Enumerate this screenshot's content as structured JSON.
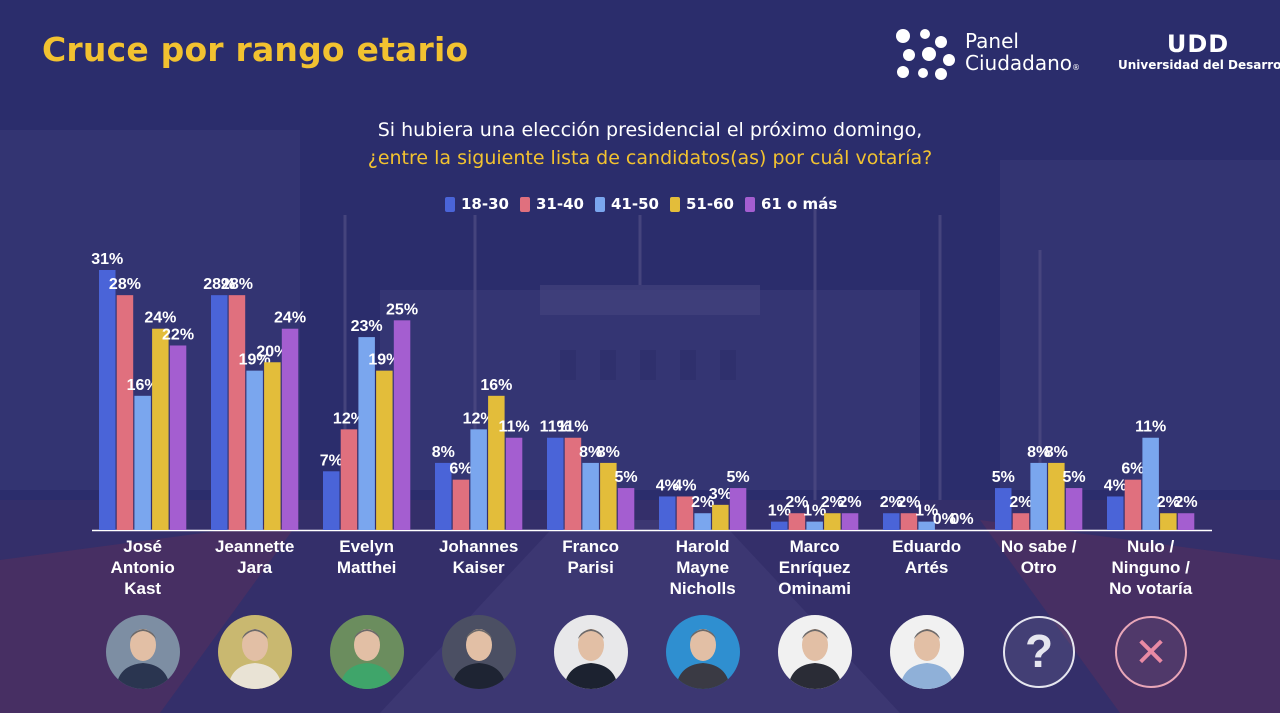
{
  "title": "Cruce por rango etario",
  "logo_panel": {
    "line1": "Panel",
    "line2": "Ciudadano",
    "reg": "®"
  },
  "logo_udd": {
    "mark": "UDD",
    "subtitle": "Universidad del Desarrollo"
  },
  "question": {
    "line1": "Si hubiera una elección presidencial el próximo domingo,",
    "line2": "¿entre la siguiente lista de candidatos(as) por cuál votaría?"
  },
  "colors": {
    "title": "#f2c230",
    "accent": "#f2c230"
  },
  "chart_data": {
    "type": "bar",
    "title": "Si hubiera una elección presidencial el próximo domingo, ¿entre la siguiente lista de candidatos(as) por cuál votaría?",
    "categories": [
      "José Antonio Kast",
      "Jeannette Jara",
      "Evelyn Matthei",
      "Johannes Kaiser",
      "Franco Parisi",
      "Harold Mayne Nicholls",
      "Marco Enríquez Ominami",
      "Eduardo Artés",
      "No sabe / Otro",
      "Nulo / Ninguno / No votaría"
    ],
    "category_lines": [
      [
        "José",
        "Antonio",
        "Kast"
      ],
      [
        "Jeannette",
        "Jara"
      ],
      [
        "Evelyn",
        "Matthei"
      ],
      [
        "Johannes",
        "Kaiser"
      ],
      [
        "Franco",
        "Parisi"
      ],
      [
        "Harold",
        "Mayne",
        "Nicholls"
      ],
      [
        "Marco",
        "Enríquez",
        "Ominami"
      ],
      [
        "Eduardo",
        "Artés"
      ],
      [
        "No sabe /",
        "Otro"
      ],
      [
        "Nulo /",
        "Ninguno /",
        "No votaría"
      ]
    ],
    "series": [
      {
        "name": "18-30",
        "color": "#4a64d8",
        "values": [
          31,
          28,
          7,
          8,
          11,
          4,
          1,
          2,
          5,
          4
        ]
      },
      {
        "name": "31-40",
        "color": "#e0707e",
        "values": [
          28,
          28,
          12,
          6,
          11,
          4,
          2,
          2,
          2,
          6
        ]
      },
      {
        "name": "41-50",
        "color": "#7aa6ee",
        "values": [
          16,
          19,
          23,
          12,
          8,
          2,
          1,
          1,
          8,
          11
        ]
      },
      {
        "name": "51-60",
        "color": "#e3bd3a",
        "values": [
          24,
          20,
          19,
          16,
          8,
          3,
          2,
          0,
          8,
          2
        ]
      },
      {
        "name": "61 o más",
        "color": "#a45ed0",
        "values": [
          22,
          24,
          25,
          11,
          5,
          5,
          2,
          0,
          5,
          2
        ]
      }
    ],
    "value_suffix": "%",
    "ylim": [
      0,
      31
    ],
    "legend": "top-center",
    "grid": false
  },
  "avatars": [
    {
      "name": "José Antonio Kast",
      "kind": "photo",
      "bg": "#7d8ea3",
      "shirt": "#2a3550"
    },
    {
      "name": "Jeannette Jara",
      "kind": "photo",
      "bg": "#c9b870",
      "shirt": "#e9e3d5"
    },
    {
      "name": "Evelyn Matthei",
      "kind": "photo",
      "bg": "#6b8d5e",
      "shirt": "#3fa56a"
    },
    {
      "name": "Johannes Kaiser",
      "kind": "photo",
      "bg": "#4b4f63",
      "shirt": "#1e2433"
    },
    {
      "name": "Franco Parisi",
      "kind": "photo",
      "bg": "#e8e8ea",
      "shirt": "#1c2230"
    },
    {
      "name": "Harold Mayne Nicholls",
      "kind": "photo",
      "bg": "#2f8fd0",
      "shirt": "#3a3a44"
    },
    {
      "name": "Marco Enríquez Ominami",
      "kind": "photo",
      "bg": "#f1f1f1",
      "shirt": "#2a2c36"
    },
    {
      "name": "Eduardo Artés",
      "kind": "photo",
      "bg": "#f1f1f1",
      "shirt": "#8fb0d8"
    },
    {
      "name": "No sabe / Otro",
      "kind": "question",
      "symbol": "?"
    },
    {
      "name": "Nulo / Ninguno / No votaría",
      "kind": "cross",
      "symbol": "✕"
    }
  ]
}
